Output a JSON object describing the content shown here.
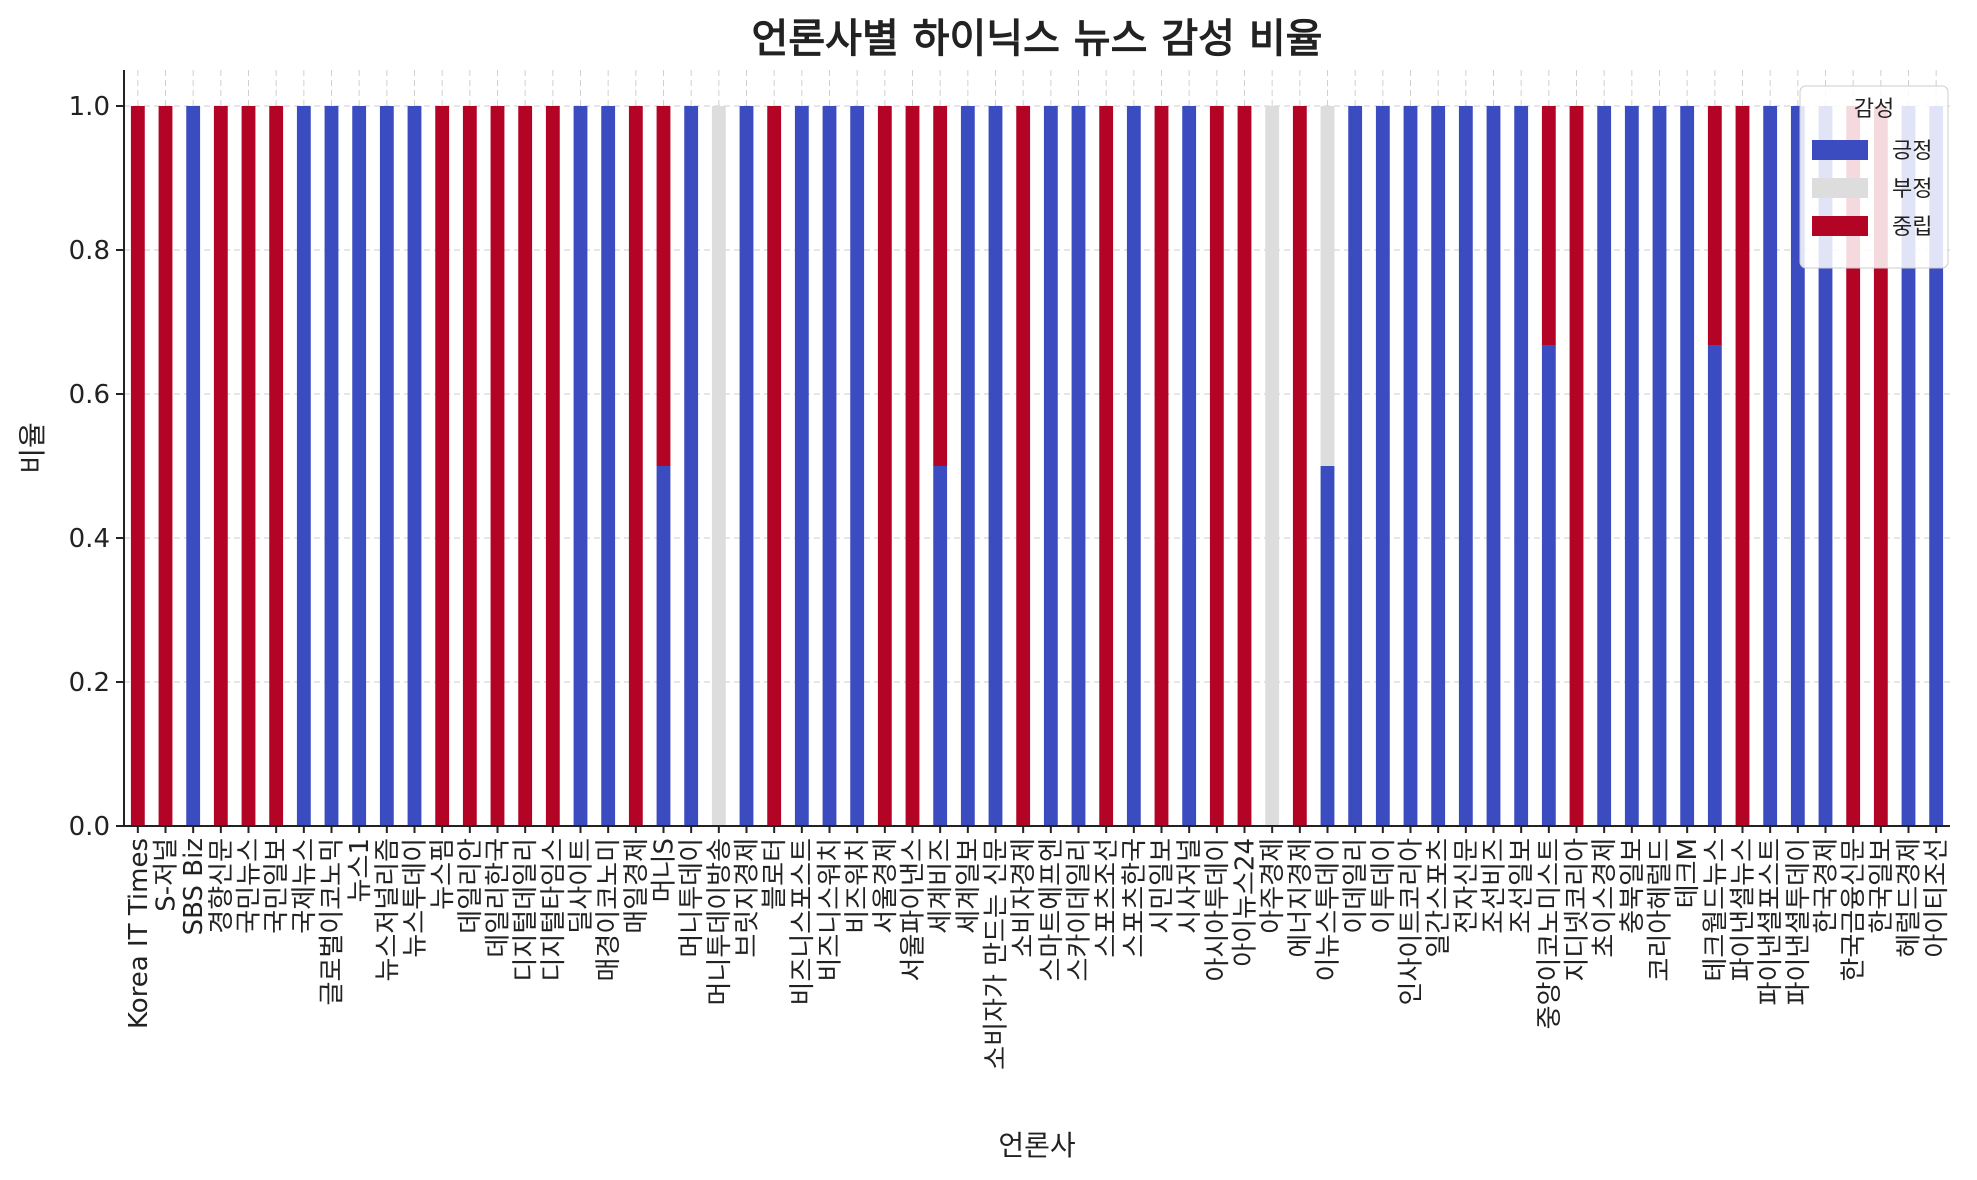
{
  "chart_data": {
    "type": "bar",
    "stacked": true,
    "title": "언론사별 하이닉스 뉴스 감성 비율",
    "xlabel": "언론사",
    "ylabel": "비율",
    "ylim": [
      0,
      1.05
    ],
    "yticks": [
      "0.0",
      "0.2",
      "0.4",
      "0.6",
      "0.8",
      "1.0"
    ],
    "grid": true,
    "legend": {
      "title": "감성",
      "placement": "top-right"
    },
    "colors": {
      "긍정": "#3b4cc0",
      "부정": "#dddddd",
      "중립": "#b40426"
    },
    "categories": [
      "Korea IT Times",
      "S-저널",
      "SBS Biz",
      "경향신문",
      "국민뉴스",
      "국민일보",
      "국제뉴스",
      "글로벌이코노믹",
      "뉴스1",
      "뉴스저널리즘",
      "뉴스투데이",
      "뉴스핌",
      "데일리안",
      "데일리한국",
      "디지털데일리",
      "디지털타임스",
      "딜사이트",
      "매경이코노미",
      "매일경제",
      "머니S",
      "머니투데이",
      "머니투데이방송",
      "브릿지경제",
      "블로터",
      "비즈니스포스트",
      "비즈니스워치",
      "비즈워치",
      "서울경제",
      "서울파이낸스",
      "세계비즈",
      "세계일보",
      "소비자가 만드는 신문",
      "소비자경제",
      "스마트에프엔",
      "스카이데일리",
      "스포츠조선",
      "스포츠한국",
      "시민일보",
      "시사저널",
      "아시아투데이",
      "아이뉴스24",
      "아주경제",
      "에너지경제",
      "이뉴스투데이",
      "이데일리",
      "이투데이",
      "인사이트코리아",
      "일간스포츠",
      "전자신문",
      "조선비즈",
      "조선일보",
      "중앙이코노미스트",
      "지디넷코리아",
      "초이스경제",
      "충북일보",
      "코리아헤럴드",
      "테크M",
      "테크월드뉴스",
      "파이낸셜뉴스",
      "파이낸셜포스트",
      "파이낸셜투데이",
      "한국경제",
      "한국금융신문",
      "한국일보",
      "헤럴드경제",
      "아이티조선"
    ],
    "series": [
      {
        "name": "긍정",
        "values": [
          0,
          0,
          1,
          0,
          0,
          0,
          1,
          1,
          1,
          1,
          1,
          0,
          0,
          0,
          0,
          0,
          1,
          1,
          0,
          0.5,
          1,
          0,
          1,
          0,
          1,
          1,
          1,
          0,
          0,
          0.5,
          1,
          1,
          0,
          1,
          1,
          0,
          1,
          0,
          1,
          0,
          0,
          0,
          0,
          0.5,
          1,
          1,
          1,
          1,
          1,
          1,
          1,
          0.667,
          0,
          1,
          1,
          1,
          1,
          0.667,
          0,
          1,
          1,
          1,
          0,
          0,
          1,
          1
        ]
      },
      {
        "name": "부정",
        "values": [
          0,
          0,
          0,
          0,
          0,
          0,
          0,
          0,
          0,
          0,
          0,
          0,
          0,
          0,
          0,
          0,
          0,
          0,
          0,
          0,
          0,
          1,
          0,
          0,
          0,
          0,
          0,
          0,
          0,
          0,
          0,
          0,
          0,
          0,
          0,
          0,
          0,
          0,
          0,
          0,
          0,
          1,
          0,
          0.5,
          0,
          0,
          0,
          0,
          0,
          0,
          0,
          0,
          0,
          0,
          0,
          0,
          0,
          0,
          0,
          0,
          0,
          0,
          0,
          0,
          0,
          0
        ]
      },
      {
        "name": "중립",
        "values": [
          1,
          1,
          0,
          1,
          1,
          1,
          0,
          0,
          0,
          0,
          0,
          1,
          1,
          1,
          1,
          1,
          0,
          0,
          1,
          0.5,
          0,
          0,
          0,
          1,
          0,
          0,
          0,
          1,
          1,
          0.5,
          0,
          0,
          1,
          0,
          0,
          1,
          0,
          1,
          0,
          1,
          1,
          0,
          1,
          0,
          0,
          0,
          0,
          0,
          0,
          0,
          0,
          0.333,
          1,
          0,
          0,
          0,
          0,
          0.333,
          1,
          0,
          0,
          0,
          1,
          1,
          0,
          0
        ]
      }
    ]
  }
}
